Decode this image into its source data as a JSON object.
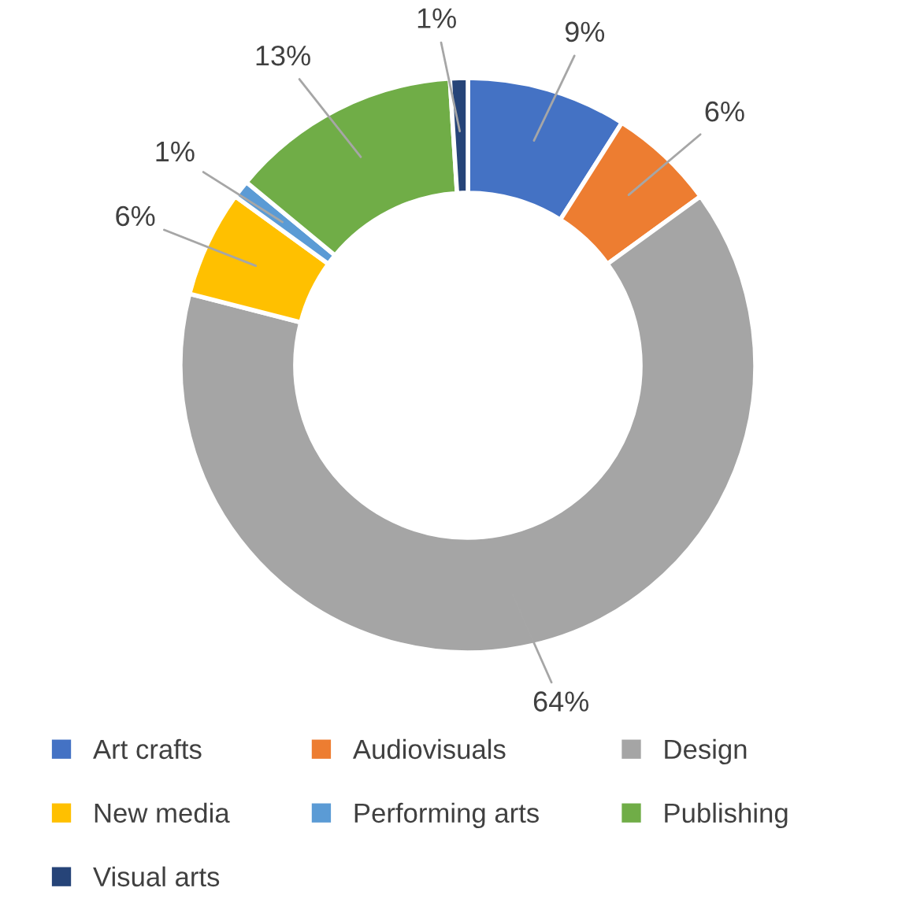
{
  "chart_data": {
    "type": "donut",
    "categories": [
      "Art crafts",
      "Audiovisuals",
      "Design",
      "New media",
      "Performing arts",
      "Publishing",
      "Visual arts"
    ],
    "values": [
      9,
      6,
      64,
      6,
      1,
      13,
      1
    ],
    "colors": [
      "#4472c4",
      "#ed7d31",
      "#a5a5a5",
      "#ffc000",
      "#5b9bd5",
      "#70ad47",
      "#264478"
    ],
    "value_labels": [
      "9%",
      "6%",
      "64%",
      "6%",
      "1%",
      "13%",
      "1%"
    ],
    "legend": "bottom"
  }
}
